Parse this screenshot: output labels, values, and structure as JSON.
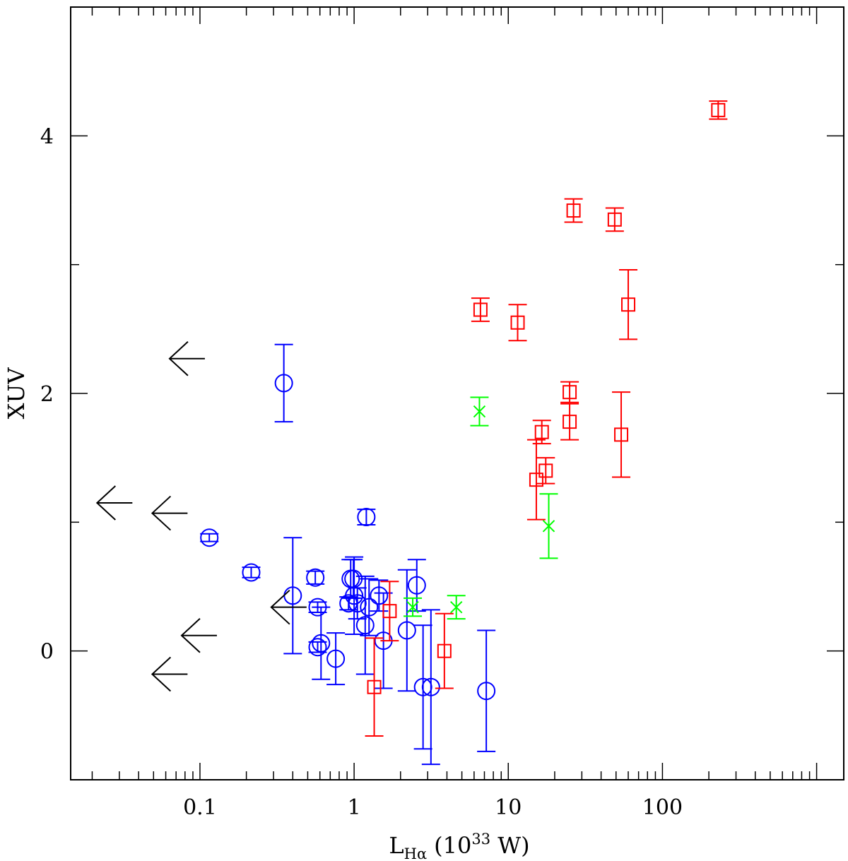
{
  "chart_data": {
    "type": "scatter",
    "title": "",
    "xlabel": {
      "main": "L",
      "sub": "Hα",
      "rest": "(10",
      "sup": "33",
      "unit": " W)"
    },
    "ylabel": "XUV",
    "xscale": "log",
    "xlim": [
      0.0145,
      1500
    ],
    "ylim": [
      -1.0,
      5.0
    ],
    "grid": false,
    "x_ticks": [
      {
        "value": 0.1,
        "label": "0.1"
      },
      {
        "value": 1,
        "label": "1"
      },
      {
        "value": 10,
        "label": "10"
      },
      {
        "value": 100,
        "label": "100"
      }
    ],
    "y_ticks": [
      {
        "value": 0,
        "label": "0"
      },
      {
        "value": 2,
        "label": "2"
      },
      {
        "value": 4,
        "label": "4"
      }
    ],
    "y_minor_ticks": [
      1,
      3
    ],
    "series": [
      {
        "marker": "circle",
        "color": "#0000ff",
        "points": [
          {
            "x": 0.35,
            "y": 2.08,
            "err": 0.3
          },
          {
            "x": 0.115,
            "y": 0.88,
            "err": 0.03
          },
          {
            "x": 0.215,
            "y": 0.61,
            "err": 0.04
          },
          {
            "x": 0.4,
            "y": 0.43,
            "err": 0.45
          },
          {
            "x": 0.56,
            "y": 0.57,
            "err": 0.05
          },
          {
            "x": 0.58,
            "y": 0.34,
            "err": 0.04
          },
          {
            "x": 0.58,
            "y": 0.03,
            "err": 0.04
          },
          {
            "x": 0.61,
            "y": 0.06,
            "err": 0.28
          },
          {
            "x": 0.76,
            "y": -0.06,
            "err": 0.2
          },
          {
            "x": 0.92,
            "y": 0.37,
            "err": 0.05
          },
          {
            "x": 0.95,
            "y": 0.56,
            "err": 0.15
          },
          {
            "x": 0.99,
            "y": 0.56,
            "err": 0.15
          },
          {
            "x": 1.0,
            "y": 0.43,
            "err": 0.3
          },
          {
            "x": 1.05,
            "y": 0.37,
            "err": 0.12
          },
          {
            "x": 1.2,
            "y": 1.04,
            "err": 0.06
          },
          {
            "x": 1.18,
            "y": 0.2,
            "err": 0.38
          },
          {
            "x": 1.25,
            "y": 0.34,
            "err": 0.22
          },
          {
            "x": 1.45,
            "y": 0.43,
            "err": 0.12
          },
          {
            "x": 1.55,
            "y": 0.08,
            "err": 0.37
          },
          {
            "x": 2.2,
            "y": 0.16,
            "err": 0.47
          },
          {
            "x": 2.55,
            "y": 0.51,
            "err": 0.2
          },
          {
            "x": 2.8,
            "y": -0.28,
            "err": 0.48
          },
          {
            "x": 3.15,
            "y": -0.28,
            "err": 0.6
          },
          {
            "x": 7.2,
            "y": -0.31,
            "err": 0.47
          }
        ]
      },
      {
        "marker": "square",
        "color": "#ff0000",
        "points": [
          {
            "x": 230,
            "y": 4.2,
            "err": 0.07
          },
          {
            "x": 26.5,
            "y": 3.42,
            "err": 0.09
          },
          {
            "x": 49,
            "y": 3.35,
            "err": 0.09
          },
          {
            "x": 6.6,
            "y": 2.65,
            "err": 0.09
          },
          {
            "x": 11.5,
            "y": 2.55,
            "err": 0.14
          },
          {
            "x": 60,
            "y": 2.69,
            "err": 0.27
          },
          {
            "x": 25,
            "y": 2.01,
            "err": 0.08
          },
          {
            "x": 25,
            "y": 1.78,
            "err": 0.14
          },
          {
            "x": 16.5,
            "y": 1.7,
            "err": 0.09
          },
          {
            "x": 54,
            "y": 1.68,
            "err": 0.33
          },
          {
            "x": 17.5,
            "y": 1.4,
            "err": 0.1
          },
          {
            "x": 15.2,
            "y": 1.33,
            "err": 0.31
          },
          {
            "x": 1.7,
            "y": 0.31,
            "err": 0.23
          },
          {
            "x": 3.85,
            "y": 0.0,
            "err": 0.29
          },
          {
            "x": 1.35,
            "y": -0.28,
            "err": 0.38
          }
        ]
      },
      {
        "marker": "cross",
        "color": "#00ff00",
        "points": [
          {
            "x": 6.5,
            "y": 1.86,
            "err": 0.11
          },
          {
            "x": 18.3,
            "y": 0.97,
            "err": 0.25
          },
          {
            "x": 2.4,
            "y": 0.34,
            "err": 0.07
          },
          {
            "x": 4.6,
            "y": 0.34,
            "err": 0.09
          }
        ]
      },
      {
        "marker": "left-arrow",
        "color": "#000000",
        "points": [
          {
            "x": 0.0635,
            "y": 2.27
          },
          {
            "x": 0.0215,
            "y": 1.15
          },
          {
            "x": 0.049,
            "y": 1.07
          },
          {
            "x": 0.29,
            "y": 0.34
          },
          {
            "x": 0.076,
            "y": 0.12
          },
          {
            "x": 0.049,
            "y": -0.18
          }
        ]
      }
    ]
  }
}
